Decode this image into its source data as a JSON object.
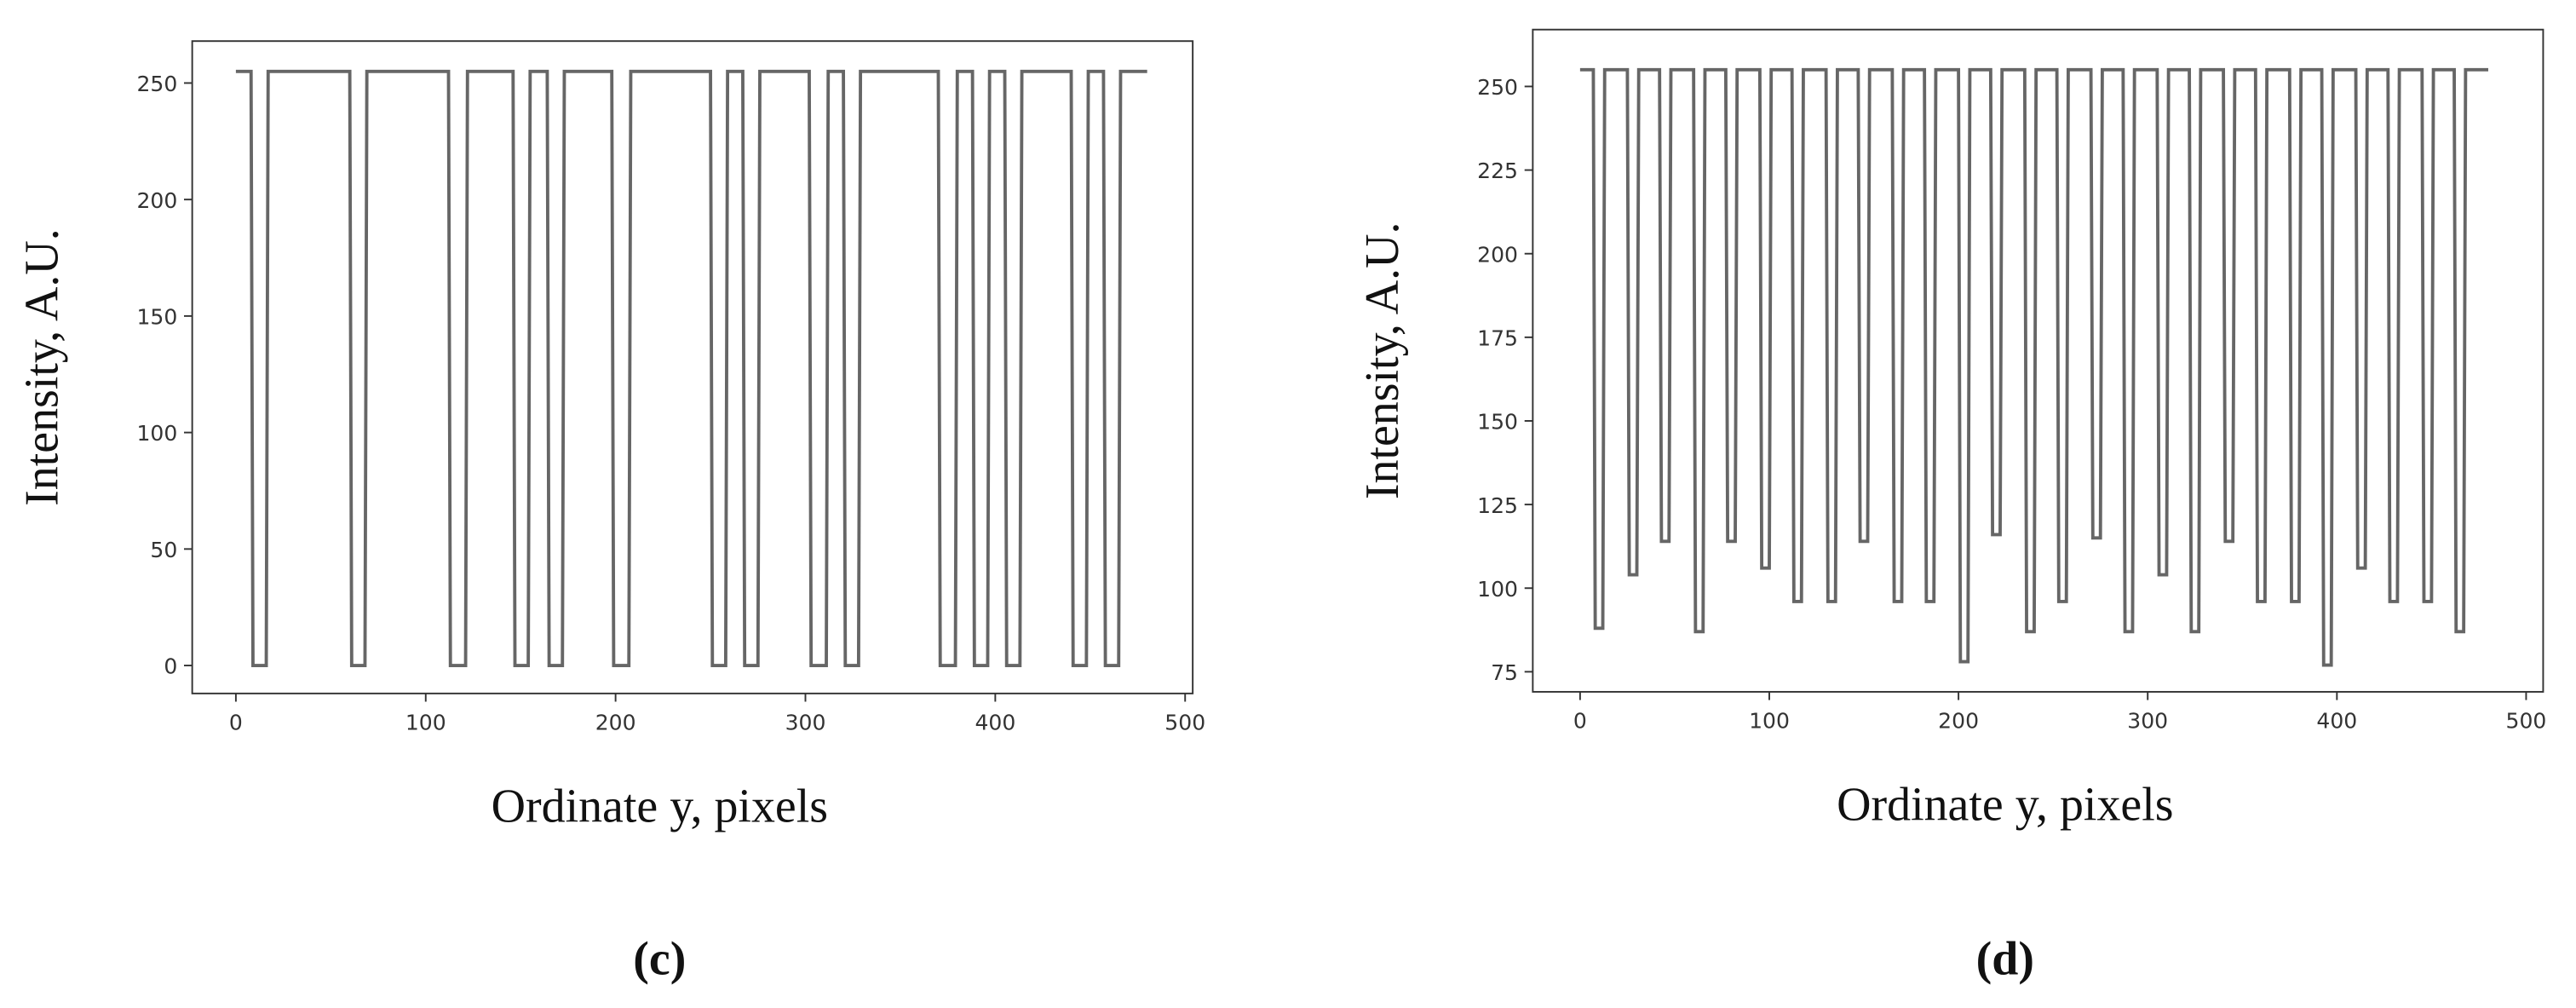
{
  "chart_data": [
    {
      "type": "line",
      "caption": "(c)",
      "xlabel": "Ordinate y, pixels",
      "ylabel": "Intensity, A.U.",
      "xlim": [
        -23,
        504
      ],
      "ylim": [
        -12,
        268
      ],
      "xticks": [
        0,
        100,
        200,
        300,
        400,
        500
      ],
      "yticks": [
        0,
        50,
        100,
        150,
        200,
        250
      ],
      "series": [
        {
          "color": "#666666",
          "x": [
            0,
            8,
            9,
            16,
            17,
            60,
            61,
            68,
            69,
            112,
            113,
            121,
            122,
            146,
            147,
            154,
            155,
            164,
            165,
            172,
            173,
            198,
            199,
            207,
            208,
            250,
            251,
            258,
            259,
            267,
            268,
            275,
            276,
            302,
            303,
            311,
            312,
            320,
            321,
            328,
            329,
            370,
            371,
            379,
            380,
            388,
            389,
            396,
            397,
            405,
            406,
            413,
            414,
            440,
            441,
            448,
            449,
            457,
            458,
            465,
            466,
            480
          ],
          "values": [
            255,
            255,
            0,
            0,
            255,
            255,
            0,
            0,
            255,
            255,
            0,
            0,
            255,
            255,
            0,
            0,
            255,
            255,
            0,
            0,
            255,
            255,
            0,
            0,
            255,
            255,
            0,
            0,
            255,
            255,
            0,
            0,
            255,
            255,
            0,
            0,
            255,
            255,
            0,
            0,
            255,
            255,
            0,
            0,
            255,
            255,
            0,
            0,
            255,
            255,
            0,
            0,
            255,
            255,
            0,
            0,
            255,
            255,
            0,
            0,
            255,
            255
          ]
        }
      ]
    },
    {
      "type": "line",
      "caption": "(d)",
      "xlabel": "Ordinate y, pixels",
      "ylabel": "Intensity, A.U.",
      "xlim": [
        -25,
        509
      ],
      "ylim": [
        69,
        267
      ],
      "xticks": [
        0,
        100,
        200,
        300,
        400,
        500
      ],
      "yticks": [
        75,
        100,
        125,
        150,
        175,
        200,
        225,
        250
      ],
      "series": [
        {
          "color": "#666666",
          "x": [
            0,
            7,
            8,
            12,
            13,
            25,
            26,
            30,
            31,
            42,
            43,
            47,
            48,
            60,
            61,
            65,
            66,
            77,
            78,
            82,
            83,
            95,
            96,
            100,
            101,
            112,
            113,
            117,
            118,
            130,
            131,
            135,
            136,
            147,
            148,
            152,
            153,
            165,
            166,
            170,
            171,
            182,
            183,
            187,
            188,
            200,
            201,
            205,
            206,
            217,
            218,
            222,
            223,
            235,
            236,
            240,
            241,
            252,
            253,
            257,
            258,
            270,
            271,
            275,
            276,
            287,
            288,
            292,
            293,
            305,
            306,
            310,
            311,
            322,
            323,
            327,
            328,
            340,
            341,
            345,
            346,
            357,
            358,
            362,
            363,
            375,
            376,
            380,
            381,
            392,
            393,
            397,
            398,
            410,
            411,
            415,
            416,
            427,
            428,
            432,
            433,
            445,
            446,
            450,
            451,
            462,
            463,
            467,
            468,
            480
          ],
          "values": [
            255,
            255,
            88,
            88,
            255,
            255,
            104,
            104,
            255,
            255,
            114,
            114,
            255,
            255,
            87,
            87,
            255,
            255,
            114,
            114,
            255,
            255,
            106,
            106,
            255,
            255,
            96,
            96,
            255,
            255,
            96,
            96,
            255,
            255,
            114,
            114,
            255,
            255,
            96,
            96,
            255,
            255,
            96,
            96,
            255,
            255,
            78,
            78,
            255,
            255,
            116,
            116,
            255,
            255,
            87,
            87,
            255,
            255,
            96,
            96,
            255,
            255,
            115,
            115,
            255,
            255,
            87,
            87,
            255,
            255,
            104,
            104,
            255,
            255,
            87,
            87,
            255,
            255,
            114,
            114,
            255,
            255,
            96,
            96,
            255,
            255,
            96,
            96,
            255,
            255,
            77,
            77,
            255,
            255,
            106,
            106,
            255,
            255,
            96,
            96,
            255,
            255,
            96,
            96,
            255,
            255,
            87,
            87,
            255,
            255
          ]
        }
      ]
    }
  ]
}
